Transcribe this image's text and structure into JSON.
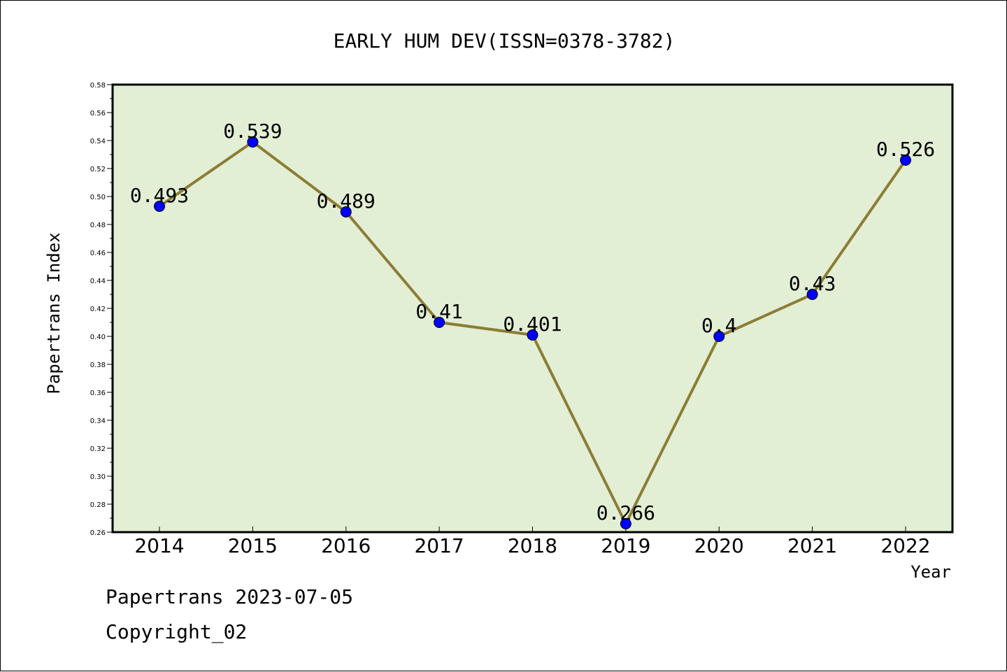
{
  "chart_data": {
    "type": "line",
    "title": "EARLY HUM DEV(ISSN=0378-3782)",
    "xlabel": "Year",
    "ylabel": "Papertrans Index",
    "categories": [
      "2014",
      "2015",
      "2016",
      "2017",
      "2018",
      "2019",
      "2020",
      "2021",
      "2022"
    ],
    "values": [
      0.493,
      0.539,
      0.489,
      0.41,
      0.401,
      0.266,
      0.4,
      0.43,
      0.526
    ],
    "data_labels": [
      "0.493",
      "0.539",
      "0.489",
      "0.41",
      "0.401",
      "0.266",
      "0.4",
      "0.43",
      "0.526"
    ],
    "ylim": [
      0.26,
      0.58
    ],
    "yticks": [
      "0.26",
      "0.28",
      "0.30",
      "0.32",
      "0.34",
      "0.36",
      "0.38",
      "0.40",
      "0.42",
      "0.44",
      "0.46",
      "0.48",
      "0.50",
      "0.52",
      "0.54",
      "0.56",
      "0.58"
    ],
    "grid": false,
    "legend": "none",
    "colors": {
      "plot_background": "#e2efd5",
      "line": "#8b7d35",
      "marker": "#0000ff"
    }
  },
  "footer": {
    "date_line": "Papertrans 2023-07-05",
    "copyright_line": "Copyright_02"
  }
}
